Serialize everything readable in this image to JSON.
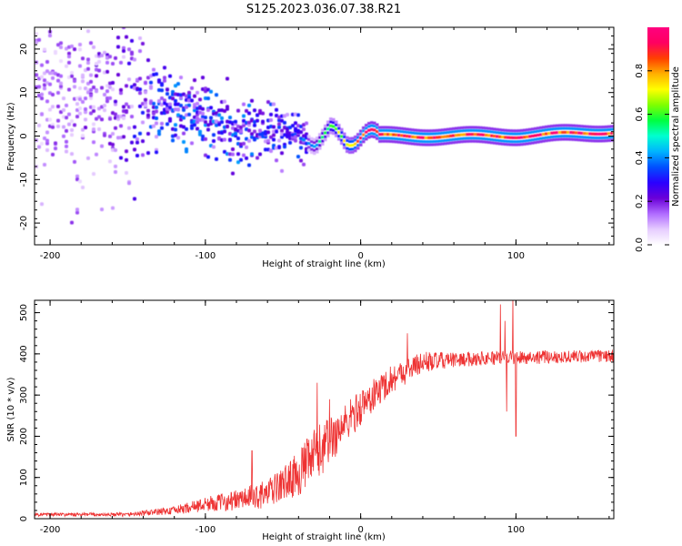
{
  "figure": {
    "title": "S125.2023.036.07.38.R21"
  },
  "chart_data": [
    {
      "type": "heatmap",
      "title": "",
      "xlabel": "Height of straight line (km)",
      "ylabel": "Frequency (Hz)",
      "xlim": [
        -210,
        163
      ],
      "ylim": [
        -25,
        25
      ],
      "xticks": [
        -200,
        -100,
        0,
        100
      ],
      "yticks": [
        -20,
        -10,
        0,
        10,
        20
      ],
      "grid": false,
      "colorbar": {
        "label": "Normalized spectral amplitude",
        "range": [
          0,
          1
        ],
        "ticks": [
          "0.0",
          "0.2",
          "0.4",
          "0.6",
          "0.8"
        ],
        "tick_values": [
          0.0,
          0.2,
          0.4,
          0.6,
          0.8
        ],
        "colormap": [
          "#ffffff",
          "#e6ccff",
          "#b06bff",
          "#6a00d8",
          "#2a00ff",
          "#0050ff",
          "#00b4ff",
          "#00ffd0",
          "#00ff40",
          "#7fff00",
          "#ffff00",
          "#ffb000",
          "#ff4000",
          "#ff0060",
          "#ff007f"
        ]
      },
      "ridge": [
        {
          "x": -200,
          "f": 12,
          "spread": 14,
          "amp": 0.15
        },
        {
          "x": -160,
          "f": 10,
          "spread": 10,
          "amp": 0.2
        },
        {
          "x": -140,
          "f": 9,
          "spread": 6,
          "amp": 0.3
        },
        {
          "x": -120,
          "f": 7,
          "spread": 5,
          "amp": 0.35
        },
        {
          "x": -100,
          "f": 4,
          "spread": 4,
          "amp": 0.35
        },
        {
          "x": -80,
          "f": 0,
          "spread": 4,
          "amp": 0.35
        },
        {
          "x": -60,
          "f": 2,
          "spread": 4,
          "amp": 0.3
        },
        {
          "x": -40,
          "f": 0,
          "spread": 3,
          "amp": 0.3
        },
        {
          "x": -30,
          "f": -1,
          "spread": 1.2,
          "amp": 0.45
        },
        {
          "x": -20,
          "f": 1,
          "spread": 0.8,
          "amp": 0.6
        },
        {
          "x": -10,
          "f": -1,
          "spread": 0.6,
          "amp": 0.75
        },
        {
          "x": 0,
          "f": 0,
          "spread": 0.5,
          "amp": 0.9
        },
        {
          "x": 50,
          "f": 0,
          "spread": 0.5,
          "amp": 0.9
        },
        {
          "x": 100,
          "f": 0,
          "spread": 0.5,
          "amp": 0.9
        },
        {
          "x": 163,
          "f": 1,
          "spread": 0.5,
          "amp": 0.9
        }
      ]
    },
    {
      "type": "line",
      "title": "",
      "xlabel": "Height of straight line (km)",
      "ylabel": "SNR (10 * v/v)",
      "xlim": [
        -210,
        163
      ],
      "ylim": [
        0,
        530
      ],
      "xticks": [
        -200,
        -100,
        0,
        100
      ],
      "yticks": [
        0,
        100,
        200,
        300,
        400,
        500
      ],
      "grid": false,
      "series": [
        {
          "color": "#ee3333",
          "trend": [
            {
              "x": -210,
              "y": 10
            },
            {
              "x": -150,
              "y": 10
            },
            {
              "x": -120,
              "y": 20
            },
            {
              "x": -100,
              "y": 35
            },
            {
              "x": -80,
              "y": 45
            },
            {
              "x": -60,
              "y": 60
            },
            {
              "x": -40,
              "y": 110
            },
            {
              "x": -20,
              "y": 190
            },
            {
              "x": 0,
              "y": 270
            },
            {
              "x": 20,
              "y": 340
            },
            {
              "x": 40,
              "y": 380
            },
            {
              "x": 80,
              "y": 390
            },
            {
              "x": 163,
              "y": 395
            }
          ],
          "noise": [
            {
              "x": -210,
              "amp": 4
            },
            {
              "x": -150,
              "amp": 5
            },
            {
              "x": -120,
              "amp": 10
            },
            {
              "x": -80,
              "amp": 25
            },
            {
              "x": -50,
              "amp": 40
            },
            {
              "x": -30,
              "amp": 70
            },
            {
              "x": -10,
              "amp": 50
            },
            {
              "x": 20,
              "amp": 35
            },
            {
              "x": 60,
              "amp": 18
            },
            {
              "x": 163,
              "amp": 15
            }
          ],
          "spikes": [
            {
              "x": -28,
              "y": 330
            },
            {
              "x": -20,
              "y": 290
            },
            {
              "x": -70,
              "y": 165
            },
            {
              "x": 90,
              "y": 520
            },
            {
              "x": 93,
              "y": 480
            },
            {
              "x": 98,
              "y": 540
            },
            {
              "x": 100,
              "y": 200
            },
            {
              "x": 94,
              "y": 260
            },
            {
              "x": 30,
              "y": 450
            }
          ]
        }
      ]
    }
  ]
}
